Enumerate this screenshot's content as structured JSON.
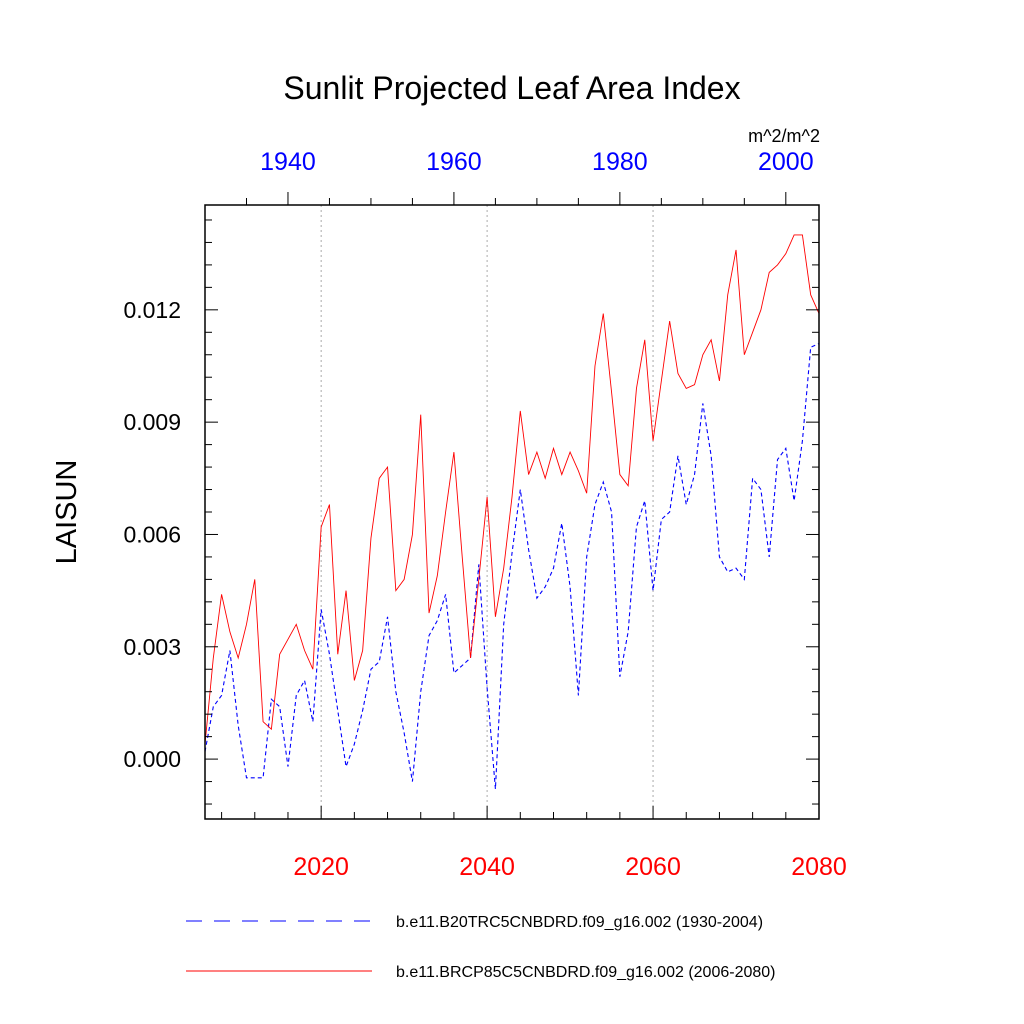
{
  "chart_data": {
    "type": "line",
    "title": "Sunlit Projected Leaf Area Index",
    "ylabel": "LAISUN",
    "units": "m^2/m^2",
    "ylim": [
      -0.0016,
      0.0148
    ],
    "yticks": [
      "0.000",
      "0.003",
      "0.006",
      "0.009",
      "0.012"
    ],
    "bottom_axis": {
      "range": [
        2006,
        2080
      ],
      "ticks": [
        "2020",
        "2040",
        "2060",
        "2080"
      ],
      "color": "#ff0000"
    },
    "top_axis": {
      "range": [
        1930,
        2004
      ],
      "ticks": [
        "1940",
        "1960",
        "1980",
        "2000"
      ],
      "color": "#0000ff"
    },
    "grid": "vertical dotted at major bottom-axis ticks",
    "series": [
      {
        "name": "b.e11.B20TRC5CNBDRD.f09_g16.002 (1930-2004)",
        "color": "#0000ff",
        "style": "dashed",
        "x_start": 1930,
        "values": [
          0.0002,
          0.0014,
          0.0017,
          0.0029,
          0.0009,
          -0.0005,
          -0.0005,
          -0.0005,
          0.0016,
          0.0014,
          -0.0002,
          0.0017,
          0.0021,
          0.001,
          0.004,
          0.0028,
          0.0013,
          -0.0002,
          0.0004,
          0.0013,
          0.0024,
          0.0026,
          0.0038,
          0.0018,
          0.0007,
          -0.0006,
          0.0018,
          0.0033,
          0.0037,
          0.0044,
          0.0023,
          0.0025,
          0.0027,
          0.0052,
          0.0019,
          -0.0008,
          0.0036,
          0.0055,
          0.0072,
          0.0056,
          0.0043,
          0.0046,
          0.0051,
          0.0063,
          0.0046,
          0.0017,
          0.0054,
          0.0068,
          0.0074,
          0.0066,
          0.0022,
          0.0034,
          0.0062,
          0.0069,
          0.0045,
          0.0064,
          0.0066,
          0.0081,
          0.0068,
          0.0076,
          0.0095,
          0.0081,
          0.0054,
          0.005,
          0.0051,
          0.0048,
          0.0075,
          0.0072,
          0.0054,
          0.008,
          0.0083,
          0.0069,
          0.0085,
          0.011,
          0.0111
        ]
      },
      {
        "name": "b.e11.BRCP85C5CNBDRD.f09_g16.002 (2006-2080)",
        "color": "#ff0000",
        "style": "solid",
        "x_start": 2006,
        "values": [
          0.0004,
          0.0027,
          0.0044,
          0.0034,
          0.0027,
          0.0036,
          0.0048,
          0.001,
          0.0008,
          0.0028,
          0.0032,
          0.0036,
          0.0029,
          0.0024,
          0.0062,
          0.0068,
          0.0028,
          0.0045,
          0.0021,
          0.0029,
          0.0059,
          0.0075,
          0.0078,
          0.0045,
          0.0048,
          0.006,
          0.0092,
          0.0039,
          0.0049,
          0.0066,
          0.0082,
          0.0054,
          0.0027,
          0.0048,
          0.007,
          0.0038,
          0.0051,
          0.007,
          0.0093,
          0.0076,
          0.0082,
          0.0075,
          0.0083,
          0.0076,
          0.0082,
          0.0077,
          0.0071,
          0.0105,
          0.0119,
          0.0098,
          0.0076,
          0.0073,
          0.0099,
          0.0112,
          0.0085,
          0.0101,
          0.0117,
          0.0103,
          0.0099,
          0.01,
          0.0108,
          0.0112,
          0.0101,
          0.0124,
          0.0136,
          0.0108,
          0.0114,
          0.012,
          0.013,
          0.0132,
          0.0135,
          0.014,
          0.014,
          0.0124,
          0.0119
        ]
      }
    ]
  }
}
